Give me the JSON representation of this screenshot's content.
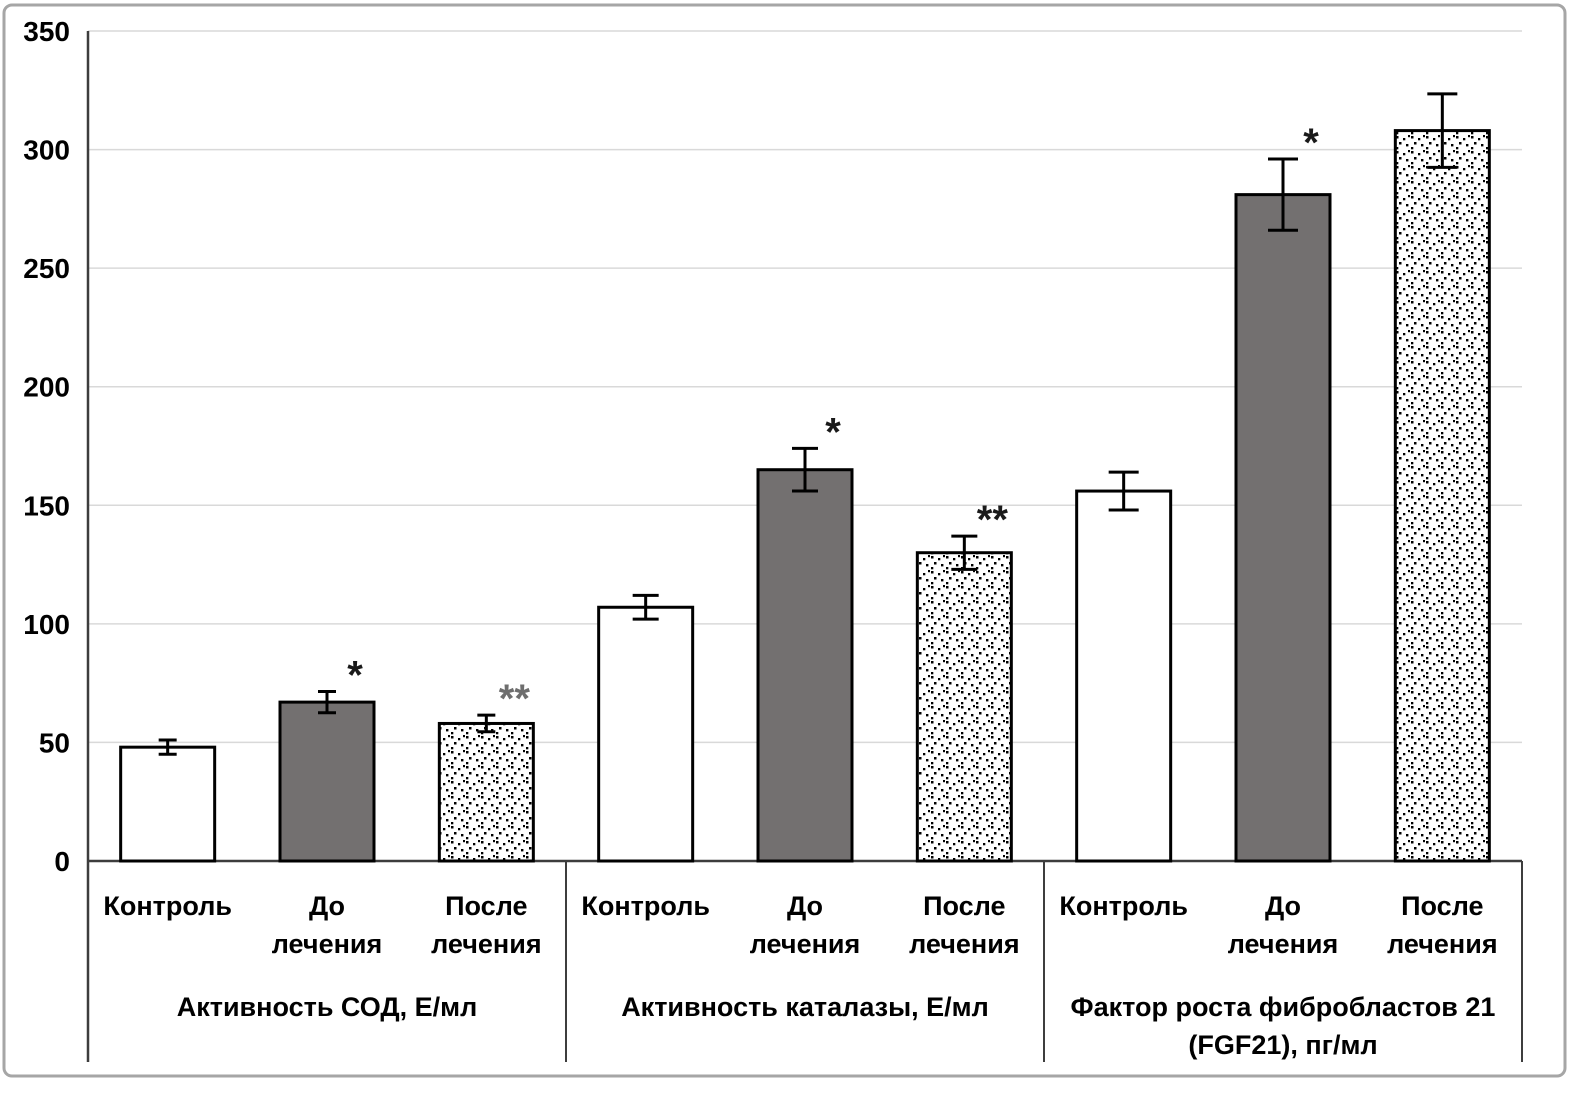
{
  "figure": {
    "background": "#ffffff",
    "border_color": "#a6a6a6"
  },
  "chart_data": {
    "type": "bar",
    "title": "",
    "xlabel": "",
    "ylabel": "",
    "ylim": [
      0,
      350
    ],
    "yticks": [
      "0",
      "50",
      "100",
      "150",
      "200",
      "250",
      "300",
      "350"
    ],
    "grid": true,
    "legend": null,
    "error_bars": true,
    "colors": {
      "control_fill": "#ffffff",
      "before_fill": "#737070",
      "after_fill": "dotted-pattern",
      "bar_stroke": "#000000",
      "grid_color": "#d9d9d9",
      "axis_color": "#3d3d3d",
      "text_color": "#000000",
      "annotation_black": "#1a1a1a",
      "annotation_gray": "#6e6e6e"
    },
    "groups": [
      {
        "title_lines": [
          "Активность СОД, Е/мл"
        ],
        "bars": [
          {
            "label_lines": [
              "Контроль"
            ],
            "style": "control",
            "value": 48,
            "error": 3,
            "annotation": ""
          },
          {
            "label_lines": [
              "До",
              "лечения"
            ],
            "style": "before",
            "value": 67,
            "error": 4.5,
            "annotation": "*",
            "annotation_color": "#1a1a1a"
          },
          {
            "label_lines": [
              "После",
              "лечения"
            ],
            "style": "after",
            "value": 58,
            "error": 3.5,
            "annotation": "**",
            "annotation_color": "#6e6e6e"
          }
        ]
      },
      {
        "title_lines": [
          "Активность каталазы, Е/мл"
        ],
        "bars": [
          {
            "label_lines": [
              "Контроль"
            ],
            "style": "control",
            "value": 107,
            "error": 5,
            "annotation": ""
          },
          {
            "label_lines": [
              "До",
              "лечения"
            ],
            "style": "before",
            "value": 165,
            "error": 9,
            "annotation": "*",
            "annotation_color": "#1a1a1a"
          },
          {
            "label_lines": [
              "После",
              "лечения"
            ],
            "style": "after",
            "value": 130,
            "error": 7,
            "annotation": "**",
            "annotation_color": "#1a1a1a"
          }
        ]
      },
      {
        "title_lines": [
          "Фактор роста фибробластов 21",
          "(FGF21), пг/мл"
        ],
        "bars": [
          {
            "label_lines": [
              "Контроль"
            ],
            "style": "control",
            "value": 156,
            "error": 8,
            "annotation": ""
          },
          {
            "label_lines": [
              "До",
              "лечения"
            ],
            "style": "before",
            "value": 281,
            "error": 15,
            "annotation": "*",
            "annotation_color": "#1a1a1a"
          },
          {
            "label_lines": [
              "После",
              "лечения"
            ],
            "style": "after",
            "value": 308,
            "error": 15.5,
            "annotation": ""
          }
        ]
      }
    ]
  }
}
